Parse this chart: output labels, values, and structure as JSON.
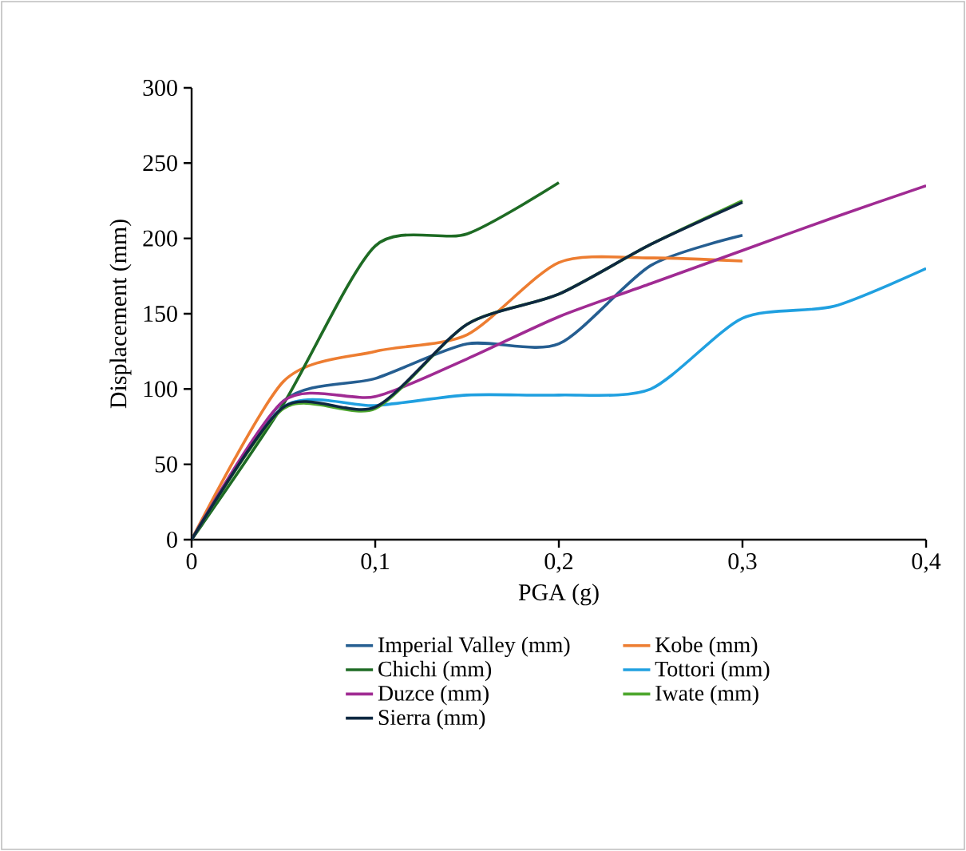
{
  "chart_data": {
    "type": "line",
    "xlabel": "PGA (g)",
    "ylabel": "Displacement (mm)",
    "x": [
      0,
      0.05,
      0.1,
      0.15,
      0.2,
      0.25,
      0.3,
      0.35,
      0.4
    ],
    "xlim": [
      0,
      0.4
    ],
    "ylim": [
      0,
      300
    ],
    "xticks": [
      0,
      {
        "value": 0.1,
        "label": "0,1"
      },
      {
        "value": 0.2,
        "label": "0,2"
      },
      {
        "value": 0.3,
        "label": "0,3"
      },
      {
        "value": 0.4,
        "label": "0,4"
      }
    ],
    "yticks": [
      0,
      50,
      100,
      150,
      200,
      250,
      300
    ],
    "grid": false,
    "legend": "bottom",
    "marker": "none",
    "line_style": "solid",
    "series": [
      {
        "name": "Imperial Valley (mm)",
        "color": "#255e91",
        "values": [
          0,
          92,
          107,
          130,
          130,
          182,
          202,
          null,
          null
        ]
      },
      {
        "name": "Kobe (mm)",
        "color": "#ed7d31",
        "values": [
          0,
          105,
          125,
          136,
          184,
          187,
          185,
          null,
          null
        ]
      },
      {
        "name": "Chichi (mm)",
        "color": "#1e6b24",
        "values": [
          0,
          90,
          195,
          203,
          237,
          null,
          null,
          null,
          null
        ]
      },
      {
        "name": "Tottori (mm)",
        "color": "#20a0e0",
        "values": [
          0,
          88,
          89,
          96,
          96,
          100,
          147,
          155,
          180
        ]
      },
      {
        "name": "Duzce (mm)",
        "color": "#a02b93",
        "values": [
          0,
          92,
          95,
          120,
          148,
          170,
          192,
          214,
          235
        ]
      },
      {
        "name": "Iwate (mm)",
        "color": "#4ea72e",
        "values": [
          0,
          87,
          87,
          143,
          163,
          196,
          225,
          null,
          null
        ]
      },
      {
        "name": "Sierra (mm)",
        "color": "#0e2841",
        "values": [
          0,
          88,
          88,
          143,
          163,
          196,
          224,
          null,
          null
        ]
      }
    ]
  }
}
